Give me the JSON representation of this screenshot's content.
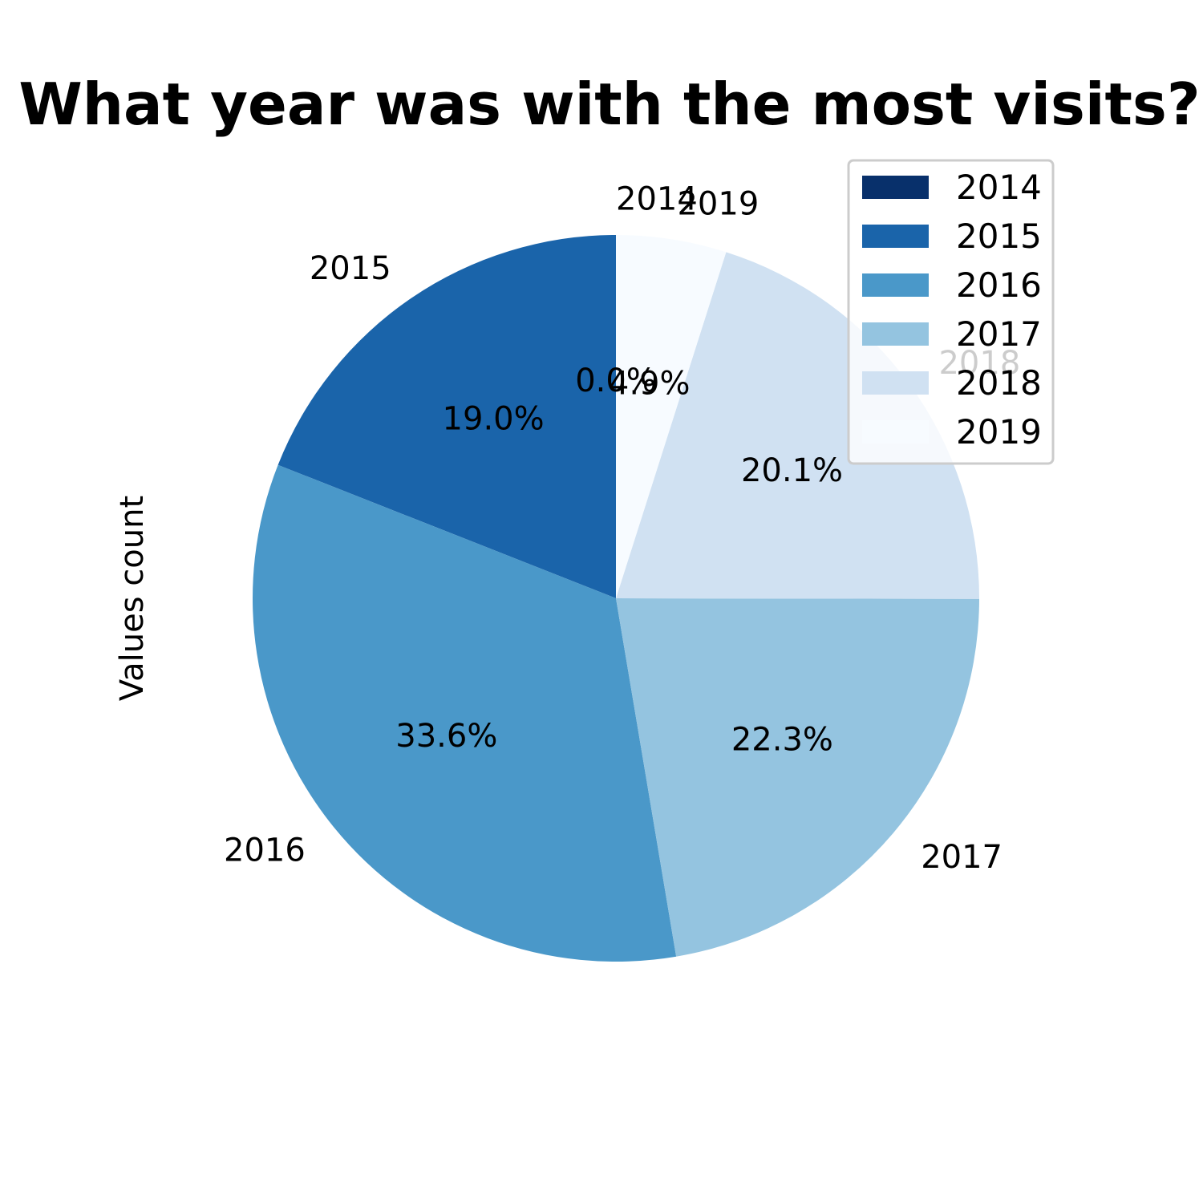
{
  "chart_data": {
    "type": "pie",
    "title": "What year was with the most visits?",
    "ylabel": "Values count",
    "categories": [
      "2014",
      "2015",
      "2016",
      "2017",
      "2018",
      "2019"
    ],
    "values": [
      0.0,
      19.0,
      33.6,
      22.3,
      20.1,
      4.9
    ],
    "percent_labels": [
      "0.0%",
      "19.0%",
      "33.6%",
      "22.3%",
      "20.1%",
      "4.9%"
    ],
    "colors": [
      "#08306b",
      "#1a64aa",
      "#4a98c9",
      "#94c4e0",
      "#d0e1f2",
      "#f7fbff"
    ],
    "start_angle_deg": 90,
    "direction": "counterclockwise",
    "legend_position": "upper-right",
    "legend": [
      "2014",
      "2015",
      "2016",
      "2017",
      "2018",
      "2019"
    ]
  }
}
